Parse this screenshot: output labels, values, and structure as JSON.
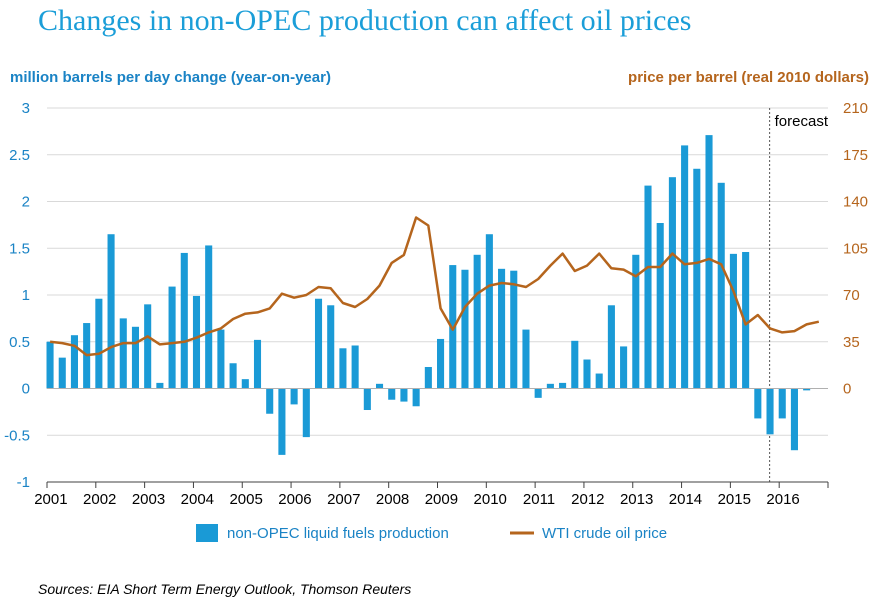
{
  "title": "Changes in non-OPEC production can affect oil prices",
  "sources": "Sources: EIA Short Term Energy Outlook, Thomson Reuters",
  "colors": {
    "bar": "#1a9ad6",
    "line": "#b5651d",
    "title": "#1b9ed8",
    "left_axis": "#1a83c5",
    "right_axis": "#b5651d",
    "grid": "#d9d9d9"
  },
  "chart_data": {
    "type": "bar",
    "title": "Changes in non-OPEC production can affect oil prices",
    "ylabel": "million barrels per day change (year-on-year)",
    "y2label": "price per barrel (real 2010 dollars)",
    "ylim": [
      -1,
      3
    ],
    "y2lim": [
      -70,
      210
    ],
    "yticks": [
      "3",
      "2.5",
      "2",
      "1.5",
      "1",
      "0.5",
      "0",
      "-0.5",
      "-1"
    ],
    "y2ticks": [
      "210",
      "175",
      "140",
      "105",
      "70",
      "35",
      "0"
    ],
    "years": [
      "2001",
      "2002",
      "2003",
      "2004",
      "2005",
      "2006",
      "2007",
      "2008",
      "2009",
      "2010",
      "2011",
      "2012",
      "2013",
      "2014",
      "2015",
      "2016"
    ],
    "grid": true,
    "forecast_label": "forecast",
    "forecast_start": "2015-09",
    "legend_position": "bottom",
    "series": [
      {
        "name": "non-OPEC liquid fuels production",
        "type": "bar",
        "axis": "left",
        "x": [
          "2001-01",
          "2001-04",
          "2001-07",
          "2001-10",
          "2002-01",
          "2002-04",
          "2002-07",
          "2002-10",
          "2003-01",
          "2003-04",
          "2003-07",
          "2003-10",
          "2004-01",
          "2004-04",
          "2004-07",
          "2004-10",
          "2005-01",
          "2005-04",
          "2005-07",
          "2005-10",
          "2006-01",
          "2006-04",
          "2006-07",
          "2006-10",
          "2007-01",
          "2007-04",
          "2007-07",
          "2007-10",
          "2008-01",
          "2008-04",
          "2008-07",
          "2008-10",
          "2009-01",
          "2009-04",
          "2009-07",
          "2009-10",
          "2010-01",
          "2010-04",
          "2010-07",
          "2010-10",
          "2011-01",
          "2011-04",
          "2011-07",
          "2011-10",
          "2012-01",
          "2012-04",
          "2012-07",
          "2012-10",
          "2013-01",
          "2013-04",
          "2013-07",
          "2013-10",
          "2014-01",
          "2014-04",
          "2014-07",
          "2014-10",
          "2015-01",
          "2015-04",
          "2015-07",
          "2015-10",
          "2016-01",
          "2016-04",
          "2016-07",
          "2016-10"
        ],
        "values": [
          0.5,
          0.33,
          0.57,
          0.7,
          0.96,
          1.65,
          0.75,
          0.66,
          0.9,
          0.06,
          1.09,
          1.45,
          0.99,
          1.53,
          0.63,
          0.27,
          0.1,
          0.52,
          -0.27,
          -0.71,
          -0.17,
          -0.52,
          0.96,
          0.89,
          0.43,
          0.46,
          -0.23,
          0.05,
          -0.12,
          -0.14,
          -0.19,
          0.23,
          0.53,
          1.32,
          1.27,
          1.43,
          1.65,
          1.28,
          1.26,
          0.63,
          -0.1,
          0.05,
          0.06,
          0.51,
          0.31,
          0.16,
          0.89,
          0.45,
          1.43,
          2.17,
          1.77,
          2.26,
          2.6,
          2.35,
          2.71,
          2.2,
          1.44,
          1.46,
          -0.32,
          -0.49,
          -0.32,
          -0.66,
          -0.02,
          0
        ]
      },
      {
        "name": "WTI crude oil price",
        "type": "line",
        "axis": "right",
        "x": [
          "2001-01",
          "2001-04",
          "2001-07",
          "2001-10",
          "2002-01",
          "2002-04",
          "2002-07",
          "2002-10",
          "2003-01",
          "2003-04",
          "2003-07",
          "2003-10",
          "2004-01",
          "2004-04",
          "2004-07",
          "2004-10",
          "2005-01",
          "2005-04",
          "2005-07",
          "2005-10",
          "2006-01",
          "2006-04",
          "2006-07",
          "2006-10",
          "2007-01",
          "2007-04",
          "2007-07",
          "2007-10",
          "2008-01",
          "2008-04",
          "2008-07",
          "2008-10",
          "2009-01",
          "2009-04",
          "2009-07",
          "2009-10",
          "2010-01",
          "2010-04",
          "2010-07",
          "2010-10",
          "2011-01",
          "2011-04",
          "2011-07",
          "2011-10",
          "2012-01",
          "2012-04",
          "2012-07",
          "2012-10",
          "2013-01",
          "2013-04",
          "2013-07",
          "2013-10",
          "2014-01",
          "2014-04",
          "2014-07",
          "2014-10",
          "2015-01",
          "2015-04",
          "2015-07",
          "2015-10",
          "2016-01",
          "2016-04",
          "2016-07",
          "2016-10"
        ],
        "values": [
          35,
          34,
          32,
          25,
          26,
          31,
          34,
          34,
          39,
          33,
          34,
          35,
          38,
          42,
          45,
          52,
          56,
          57,
          60,
          71,
          68,
          70,
          76,
          75,
          64,
          61,
          67,
          77,
          94,
          100,
          128,
          122,
          60,
          44,
          61,
          71,
          77,
          79,
          78,
          76,
          82,
          92,
          101,
          88,
          92,
          101,
          90,
          89,
          84,
          91,
          91,
          101,
          93,
          94,
          97,
          93,
          73,
          48,
          55,
          45,
          42,
          43,
          48,
          50
        ]
      }
    ]
  }
}
